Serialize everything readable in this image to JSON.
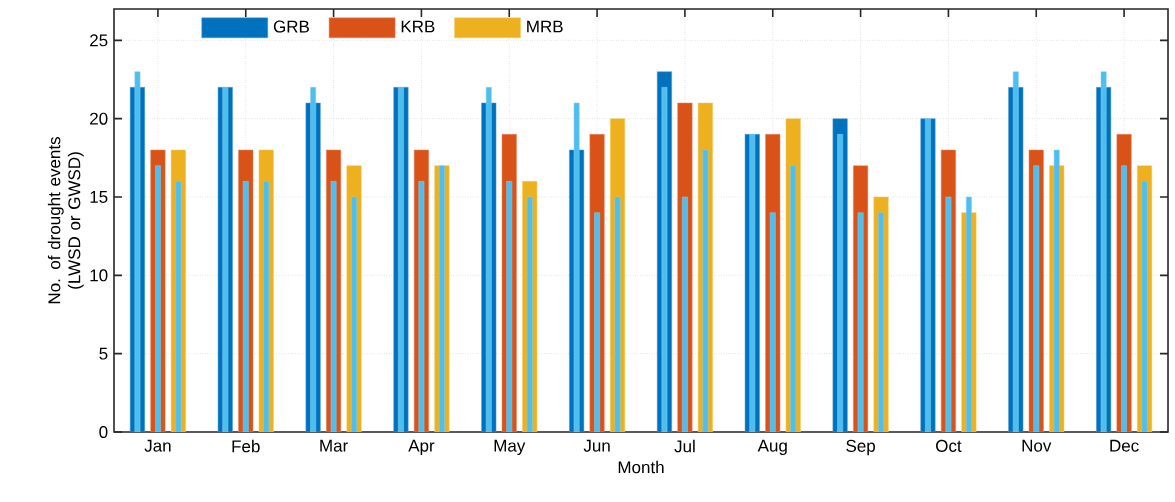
{
  "chart_data": {
    "type": "bar",
    "xlabel": "Month",
    "ylabel": "No. of drought events (LWSD or GWSD)",
    "categories": [
      "Jan",
      "Feb",
      "Mar",
      "Apr",
      "May",
      "Jun",
      "Jul",
      "Aug",
      "Sep",
      "Oct",
      "Nov",
      "Dec"
    ],
    "series": [
      {
        "name": "GRB",
        "color": "#0072bd",
        "values": [
          22,
          22,
          21,
          22,
          21,
          18,
          23,
          19,
          20,
          20,
          22,
          22
        ]
      },
      {
        "name": "KRB",
        "color": "#d95319",
        "values": [
          18,
          18,
          18,
          18,
          19,
          19,
          21,
          19,
          17,
          18,
          18,
          19
        ]
      },
      {
        "name": "MRB",
        "color": "#edb120",
        "values": [
          18,
          18,
          17,
          17,
          16,
          20,
          21,
          20,
          15,
          14,
          17,
          17
        ]
      },
      {
        "color": "#4dbeee",
        "values": [
          23,
          22,
          22,
          22,
          22,
          21,
          22,
          19,
          19,
          20,
          23,
          23
        ]
      },
      {
        "color": "#4dbeee",
        "values": [
          17,
          16,
          16,
          16,
          16,
          14,
          15,
          14,
          14,
          15,
          17,
          17
        ]
      },
      {
        "color": "#4dbeee",
        "values": [
          16,
          16,
          15,
          17,
          15,
          15,
          18,
          17,
          14,
          15,
          18,
          16
        ]
      }
    ],
    "ylim": [
      0,
      27
    ],
    "yticks": [
      0,
      5,
      10,
      15,
      20,
      25
    ],
    "grid": true,
    "legend": "top left"
  }
}
